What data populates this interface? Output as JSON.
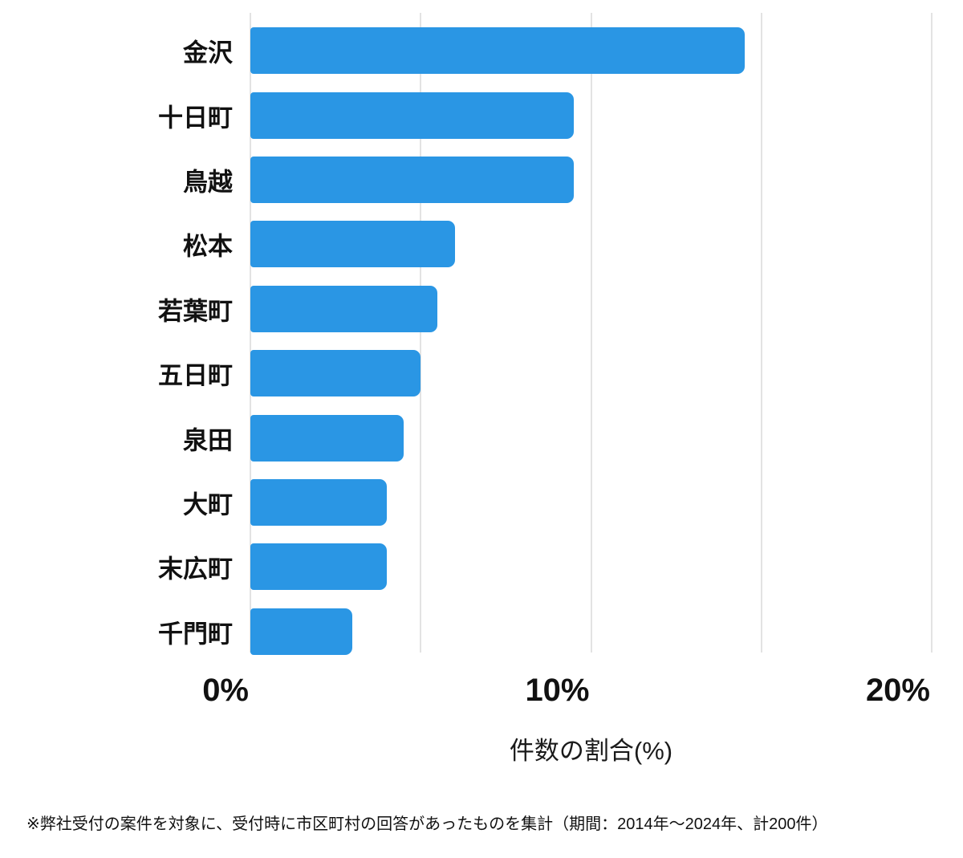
{
  "chart_data": {
    "type": "bar",
    "orientation": "horizontal",
    "title": "",
    "categories": [
      "金沢",
      "十日町",
      "鳥越",
      "松本",
      "若葉町",
      "五日町",
      "泉田",
      "大町",
      "末広町",
      "千門町"
    ],
    "values": [
      14.5,
      9.5,
      9.5,
      6.0,
      5.5,
      5.0,
      4.5,
      4.0,
      4.0,
      3.0
    ],
    "xlabel": "件数の割合(%)",
    "ylabel": "",
    "xlim": [
      0,
      20
    ],
    "grid": true,
    "gridline_values": [
      0,
      5,
      10,
      15,
      20
    ],
    "xticks": [
      {
        "value": 0,
        "label": "0%"
      },
      {
        "value": 10,
        "label": "10%"
      },
      {
        "value": 20,
        "label": "20%"
      }
    ],
    "legend": false,
    "bar_color": "#2a96e4",
    "gridline_color": "#e3e3e3",
    "text_color": "#111111"
  },
  "footnote": "※弊社受付の案件を対象に、受付時に市区町村の回答があったものを集計（期間：2014年〜2024年、計200件）"
}
